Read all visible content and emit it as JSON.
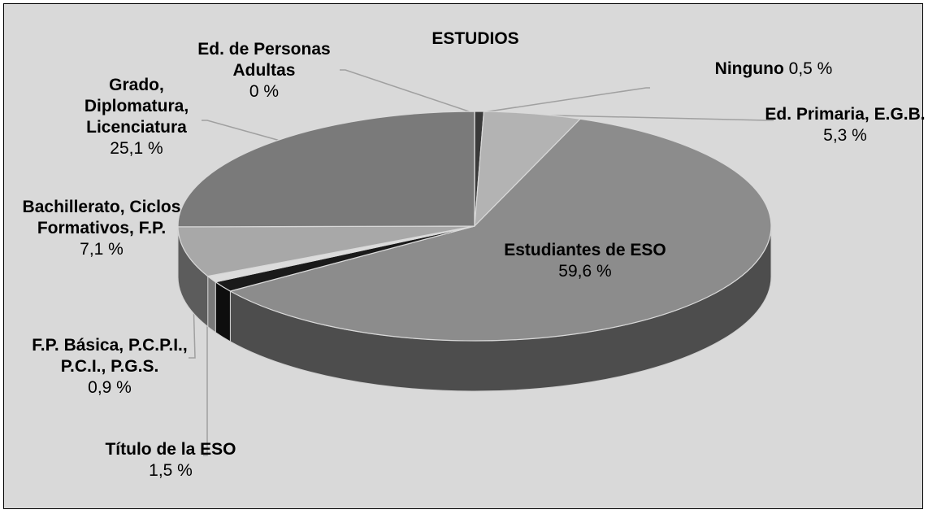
{
  "chart_data": {
    "type": "pie",
    "title": "ESTUDIOS",
    "categories": [
      "Ninguno",
      "Ed. Primaria, E.G.B.",
      "Estudiantes de ESO",
      "Título de la ESO",
      "F.P. Básica, P.C.P.I., P.C.I., P.G.S.",
      "Bachillerato, Ciclos Formativos, F.P.",
      "Grado, Diplomatura, Licenciatura",
      "Ed. de Personas Adultas"
    ],
    "values": [
      0.5,
      5.3,
      59.6,
      1.5,
      0.9,
      7.1,
      25.1,
      0
    ],
    "value_labels": [
      "0,5 %",
      "5,3 %",
      "59,6 %",
      "1,5 %",
      "0,9 %",
      "7,1 %",
      "25,1 %",
      "0 %"
    ],
    "colors": [
      "#3a3a3a",
      "#b3b3b3",
      "#8c8c8c",
      "#1a1a1a",
      "#dcdcdc",
      "#a8a8a8",
      "#7a7a7a",
      "#5a5a5a"
    ]
  }
}
